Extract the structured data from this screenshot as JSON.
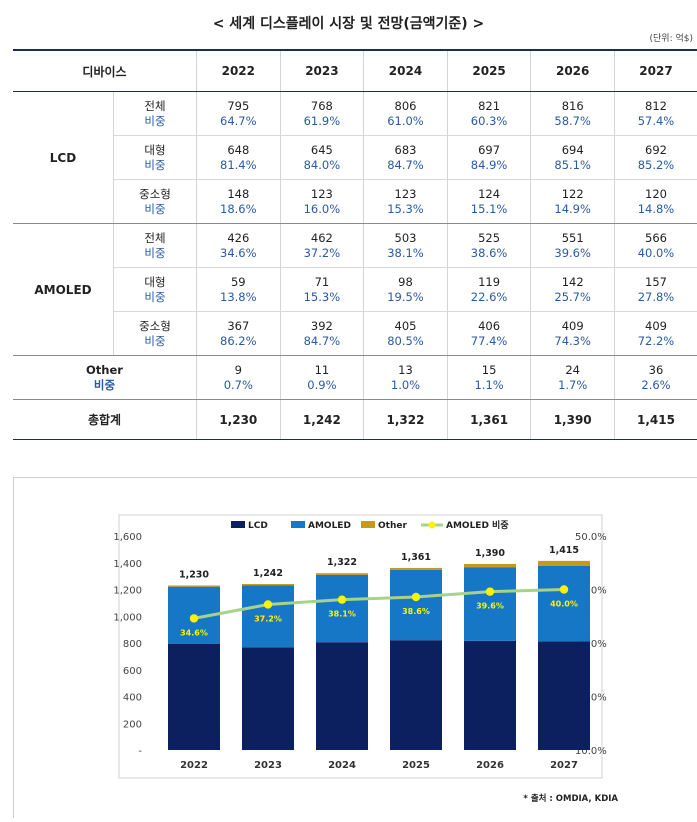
{
  "title": "< 세계 디스플레이 시장 및 전망(금액기준) >",
  "unit": "(단위: 억$)",
  "table": {
    "header_label": "디바이스",
    "years": [
      "2022",
      "2023",
      "2024",
      "2025",
      "2026",
      "2027"
    ],
    "groups": [
      {
        "name": "LCD",
        "rows": [
          {
            "label": "전체",
            "share_label": "비중",
            "values": [
              "795",
              "768",
              "806",
              "821",
              "816",
              "812"
            ],
            "shares": [
              "64.7%",
              "61.9%",
              "61.0%",
              "60.3%",
              "58.7%",
              "57.4%"
            ]
          },
          {
            "label": "대형",
            "share_label": "비중",
            "values": [
              "648",
              "645",
              "683",
              "697",
              "694",
              "692"
            ],
            "shares": [
              "81.4%",
              "84.0%",
              "84.7%",
              "84.9%",
              "85.1%",
              "85.2%"
            ]
          },
          {
            "label": "중소형",
            "share_label": "비중",
            "values": [
              "148",
              "123",
              "123",
              "124",
              "122",
              "120"
            ],
            "shares": [
              "18.6%",
              "16.0%",
              "15.3%",
              "15.1%",
              "14.9%",
              "14.8%"
            ]
          }
        ]
      },
      {
        "name": "AMOLED",
        "rows": [
          {
            "label": "전체",
            "share_label": "비중",
            "values": [
              "426",
              "462",
              "503",
              "525",
              "551",
              "566"
            ],
            "shares": [
              "34.6%",
              "37.2%",
              "38.1%",
              "38.6%",
              "39.6%",
              "40.0%"
            ]
          },
          {
            "label": "대형",
            "share_label": "비중",
            "values": [
              "59",
              "71",
              "98",
              "119",
              "142",
              "157"
            ],
            "shares": [
              "13.8%",
              "15.3%",
              "19.5%",
              "22.6%",
              "25.7%",
              "27.8%"
            ]
          },
          {
            "label": "중소형",
            "share_label": "비중",
            "values": [
              "367",
              "392",
              "405",
              "406",
              "409",
              "409"
            ],
            "shares": [
              "86.2%",
              "84.7%",
              "80.5%",
              "77.4%",
              "74.3%",
              "72.2%"
            ]
          }
        ]
      }
    ],
    "other": {
      "label": "Other",
      "share_label": "비중",
      "values": [
        "9",
        "11",
        "13",
        "15",
        "24",
        "36"
      ],
      "shares": [
        "0.7%",
        "0.9%",
        "1.0%",
        "1.1%",
        "1.7%",
        "2.6%"
      ]
    },
    "total": {
      "label": "총합계",
      "values": [
        "1,230",
        "1,242",
        "1,322",
        "1,361",
        "1,390",
        "1,415"
      ]
    }
  },
  "chart_data": {
    "type": "bar",
    "stacked": true,
    "categories": [
      "2022",
      "2023",
      "2024",
      "2025",
      "2026",
      "2027"
    ],
    "series": [
      {
        "name": "LCD",
        "values": [
          795,
          768,
          806,
          821,
          816,
          812
        ],
        "color": "#0c1f5e"
      },
      {
        "name": "AMOLED",
        "values": [
          426,
          462,
          503,
          525,
          551,
          566
        ],
        "color": "#1577c6"
      },
      {
        "name": "Other",
        "values": [
          9,
          11,
          13,
          15,
          24,
          36
        ],
        "color": "#c59a1c"
      }
    ],
    "line_series": {
      "name": "AMOLED 비중",
      "values": [
        34.6,
        37.2,
        38.1,
        38.6,
        39.6,
        40.0
      ],
      "labels": [
        "34.6%",
        "37.2%",
        "38.1%",
        "38.6%",
        "39.6%",
        "40.0%"
      ],
      "color": "#a6d388",
      "marker_color": "#fff200",
      "axis": "right"
    },
    "total_labels": [
      "1,230",
      "1,242",
      "1,322",
      "1,361",
      "1,390",
      "1,415"
    ],
    "ylim": [
      0,
      1600
    ],
    "y_ticks": [
      "-",
      "200",
      "400",
      "600",
      "800",
      "1,000",
      "1,200",
      "1,400",
      "1,600"
    ],
    "y2lim": [
      10,
      50
    ],
    "y2_ticks": [
      "10.0%",
      "20.0%",
      "30.0%",
      "40.0%",
      "50.0%"
    ],
    "legend_position": "top",
    "grid": false
  },
  "source": "* 출처 : OMDIA, KDIA"
}
